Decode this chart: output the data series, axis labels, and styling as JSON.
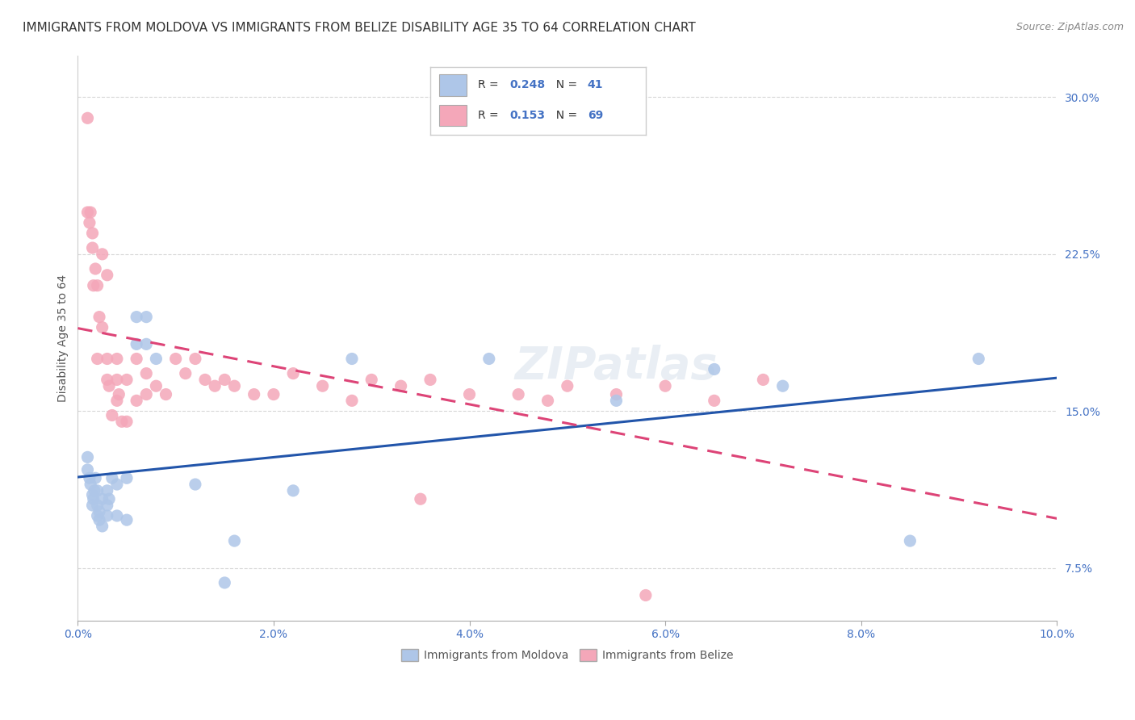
{
  "title": "IMMIGRANTS FROM MOLDOVA VS IMMIGRANTS FROM BELIZE DISABILITY AGE 35 TO 64 CORRELATION CHART",
  "source": "Source: ZipAtlas.com",
  "ylabel": "Disability Age 35 to 64",
  "xlim": [
    0.0,
    0.1
  ],
  "ylim": [
    0.05,
    0.32
  ],
  "xticks": [
    0.0,
    0.02,
    0.04,
    0.06,
    0.08,
    0.1
  ],
  "yticks": [
    0.075,
    0.15,
    0.225,
    0.3
  ],
  "ytick_labels": [
    "7.5%",
    "15.0%",
    "22.5%",
    "30.0%"
  ],
  "xtick_labels": [
    "0.0%",
    "2.0%",
    "4.0%",
    "6.0%",
    "8.0%",
    "10.0%"
  ],
  "moldova_color": "#aec6e8",
  "belize_color": "#f4a7b9",
  "moldova_line_color": "#2255aa",
  "belize_line_color": "#dd4477",
  "R_moldova": 0.248,
  "N_moldova": 41,
  "R_belize": 0.153,
  "N_belize": 69,
  "moldova_points_x": [
    0.001,
    0.001,
    0.0012,
    0.0013,
    0.0015,
    0.0015,
    0.0016,
    0.0017,
    0.0018,
    0.002,
    0.002,
    0.002,
    0.0022,
    0.0022,
    0.0025,
    0.0025,
    0.003,
    0.003,
    0.003,
    0.0032,
    0.0035,
    0.004,
    0.004,
    0.005,
    0.005,
    0.006,
    0.006,
    0.007,
    0.007,
    0.008,
    0.012,
    0.015,
    0.016,
    0.022,
    0.028,
    0.042,
    0.055,
    0.065,
    0.072,
    0.085,
    0.092
  ],
  "moldova_points_y": [
    0.128,
    0.122,
    0.118,
    0.115,
    0.11,
    0.105,
    0.108,
    0.112,
    0.118,
    0.1,
    0.105,
    0.112,
    0.098,
    0.102,
    0.095,
    0.108,
    0.1,
    0.105,
    0.112,
    0.108,
    0.118,
    0.1,
    0.115,
    0.098,
    0.118,
    0.195,
    0.182,
    0.195,
    0.182,
    0.175,
    0.115,
    0.068,
    0.088,
    0.112,
    0.175,
    0.175,
    0.155,
    0.17,
    0.162,
    0.088,
    0.175
  ],
  "belize_points_x": [
    0.001,
    0.001,
    0.0012,
    0.0013,
    0.0015,
    0.0015,
    0.0016,
    0.0018,
    0.002,
    0.002,
    0.0022,
    0.0025,
    0.0025,
    0.003,
    0.003,
    0.003,
    0.0032,
    0.0035,
    0.004,
    0.004,
    0.004,
    0.0042,
    0.0045,
    0.005,
    0.005,
    0.006,
    0.006,
    0.007,
    0.007,
    0.008,
    0.009,
    0.01,
    0.011,
    0.012,
    0.013,
    0.014,
    0.015,
    0.016,
    0.018,
    0.02,
    0.022,
    0.025,
    0.028,
    0.03,
    0.033,
    0.036,
    0.04,
    0.045,
    0.05,
    0.055,
    0.06,
    0.065,
    0.07,
    0.035,
    0.048,
    0.058
  ],
  "belize_points_y": [
    0.29,
    0.245,
    0.24,
    0.245,
    0.235,
    0.228,
    0.21,
    0.218,
    0.21,
    0.175,
    0.195,
    0.19,
    0.225,
    0.165,
    0.175,
    0.215,
    0.162,
    0.148,
    0.155,
    0.165,
    0.175,
    0.158,
    0.145,
    0.145,
    0.165,
    0.155,
    0.175,
    0.158,
    0.168,
    0.162,
    0.158,
    0.175,
    0.168,
    0.175,
    0.165,
    0.162,
    0.165,
    0.162,
    0.158,
    0.158,
    0.168,
    0.162,
    0.155,
    0.165,
    0.162,
    0.165,
    0.158,
    0.158,
    0.162,
    0.158,
    0.162,
    0.155,
    0.165,
    0.108,
    0.155,
    0.062
  ],
  "watermark": "ZIPatlas",
  "background_color": "#ffffff",
  "grid_color": "#cccccc",
  "title_fontsize": 11,
  "axis_label_fontsize": 10,
  "tick_fontsize": 10,
  "legend_fontsize": 11
}
